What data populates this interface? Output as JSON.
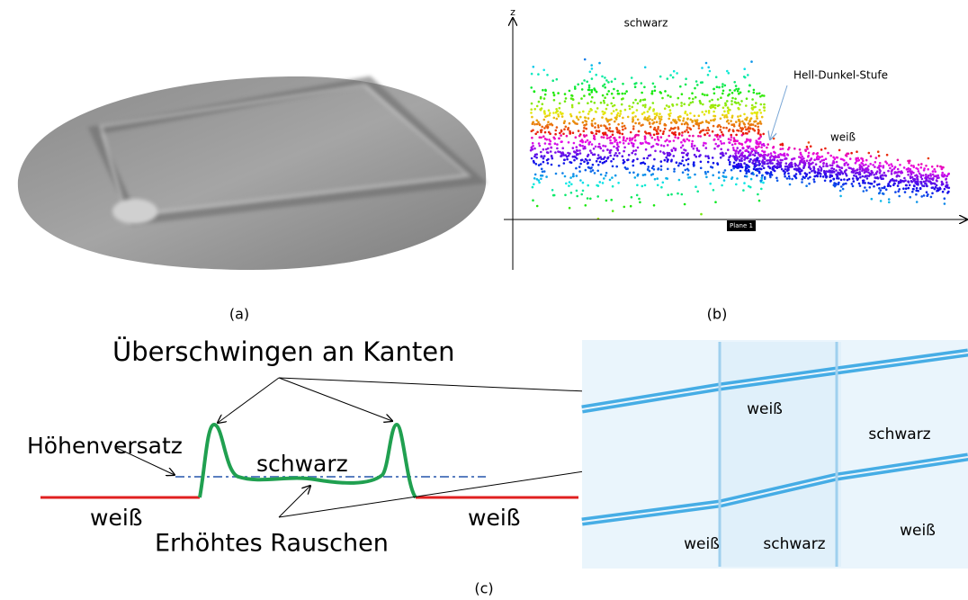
{
  "panel_a": {
    "caption": "(a)"
  },
  "panel_b": {
    "caption": "(b)",
    "axis_label": "z",
    "label_black": "schwarz",
    "label_step": "Hell-Dunkel-Stufe",
    "label_white": "weiß",
    "plane": "Plane 1"
  },
  "panel_c": {
    "caption": "(c)",
    "overshoot": "Überschwingen an Kanten",
    "offset": "Höhenversatz",
    "black": "schwarz",
    "white_left": "weiß",
    "white_right": "weiß",
    "noise": "Erhöhtes Rauschen",
    "image_labels": [
      "weiß",
      "schwarz",
      "weiß",
      "schwarz",
      "weiß"
    ]
  }
}
